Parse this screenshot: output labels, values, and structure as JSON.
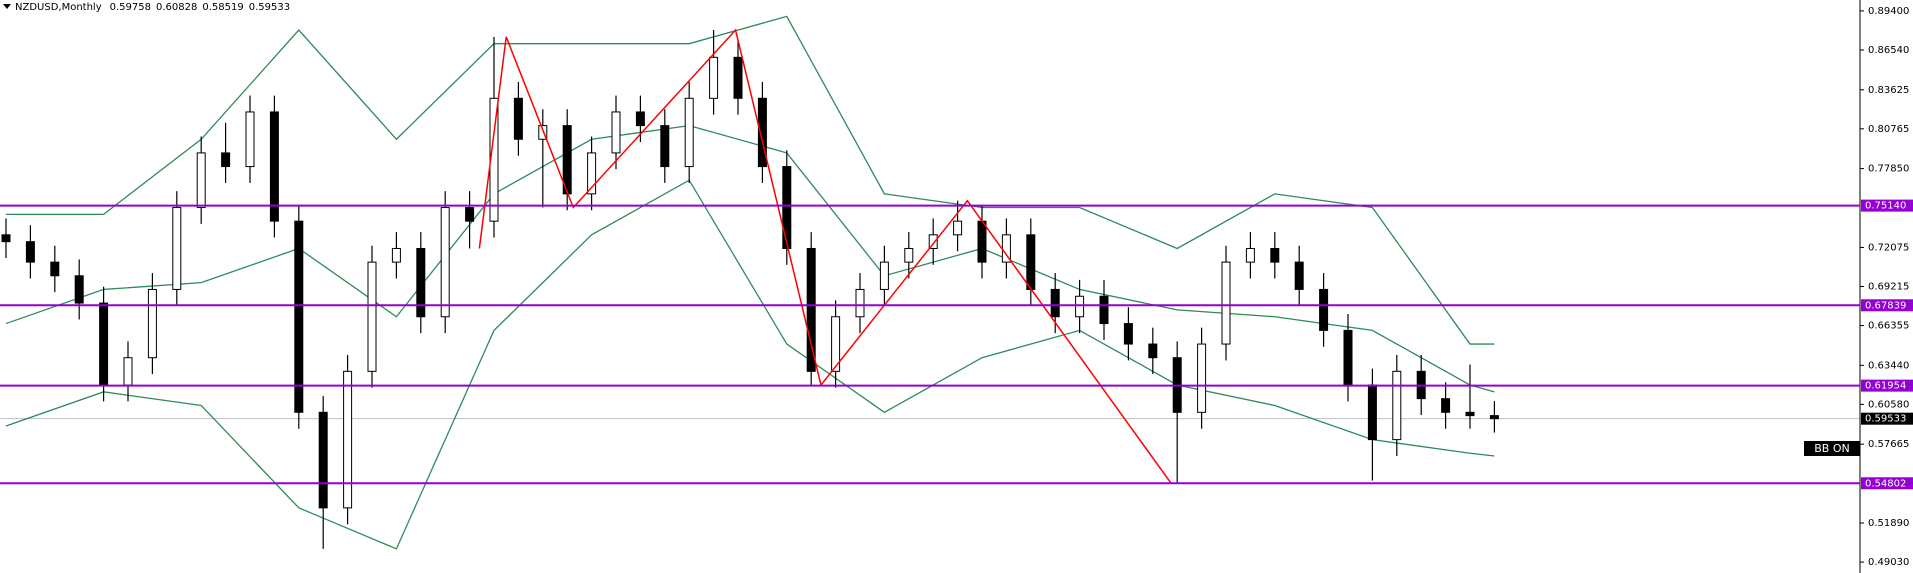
{
  "chart_data": {
    "type": "candlestick",
    "symbol": "NZDUSD,Monthly",
    "ylim": [
      0.4823,
      0.902
    ],
    "yticks": [
      {
        "value": 0.894,
        "label": "0.89400"
      },
      {
        "value": 0.8654,
        "label": "0.86540"
      },
      {
        "value": 0.83625,
        "label": "0.83625"
      },
      {
        "value": 0.80765,
        "label": "0.80765"
      },
      {
        "value": 0.7785,
        "label": "0.77850"
      },
      {
        "value": 0.72075,
        "label": "0.72075"
      },
      {
        "value": 0.69215,
        "label": "0.69215"
      },
      {
        "value": 0.66355,
        "label": "0.66355"
      },
      {
        "value": 0.6344,
        "label": "0.63440"
      },
      {
        "value": 0.6058,
        "label": "0.60580"
      },
      {
        "value": 0.57665,
        "label": "0.57665"
      },
      {
        "value": 0.5189,
        "label": "0.51890"
      },
      {
        "value": 0.4903,
        "label": "0.49030"
      }
    ],
    "candles": [
      [
        0.73,
        0.742,
        0.713,
        0.725
      ],
      [
        0.725,
        0.737,
        0.698,
        0.71
      ],
      [
        0.71,
        0.722,
        0.688,
        0.7
      ],
      [
        0.7,
        0.712,
        0.668,
        0.68
      ],
      [
        0.68,
        0.692,
        0.608,
        0.62
      ],
      [
        0.62,
        0.652,
        0.608,
        0.64
      ],
      [
        0.64,
        0.702,
        0.628,
        0.69
      ],
      [
        0.69,
        0.762,
        0.678,
        0.75
      ],
      [
        0.75,
        0.802,
        0.738,
        0.79
      ],
      [
        0.79,
        0.812,
        0.768,
        0.78
      ],
      [
        0.78,
        0.832,
        0.768,
        0.82
      ],
      [
        0.82,
        0.832,
        0.728,
        0.74
      ],
      [
        0.74,
        0.752,
        0.588,
        0.6
      ],
      [
        0.6,
        0.612,
        0.5,
        0.53
      ],
      [
        0.53,
        0.642,
        0.518,
        0.63
      ],
      [
        0.63,
        0.722,
        0.618,
        0.71
      ],
      [
        0.71,
        0.732,
        0.698,
        0.72
      ],
      [
        0.72,
        0.732,
        0.658,
        0.67
      ],
      [
        0.67,
        0.762,
        0.658,
        0.75
      ],
      [
        0.75,
        0.762,
        0.72,
        0.74
      ],
      [
        0.74,
        0.875,
        0.728,
        0.83
      ],
      [
        0.83,
        0.842,
        0.788,
        0.8
      ],
      [
        0.8,
        0.822,
        0.75,
        0.81
      ],
      [
        0.81,
        0.822,
        0.748,
        0.76
      ],
      [
        0.76,
        0.802,
        0.748,
        0.79
      ],
      [
        0.79,
        0.832,
        0.778,
        0.82
      ],
      [
        0.82,
        0.832,
        0.798,
        0.81
      ],
      [
        0.81,
        0.822,
        0.768,
        0.78
      ],
      [
        0.78,
        0.842,
        0.768,
        0.83
      ],
      [
        0.83,
        0.88,
        0.818,
        0.86
      ],
      [
        0.86,
        0.872,
        0.818,
        0.83
      ],
      [
        0.83,
        0.842,
        0.768,
        0.78
      ],
      [
        0.78,
        0.792,
        0.708,
        0.72
      ],
      [
        0.72,
        0.732,
        0.62,
        0.63
      ],
      [
        0.63,
        0.682,
        0.618,
        0.67
      ],
      [
        0.67,
        0.702,
        0.658,
        0.69
      ],
      [
        0.69,
        0.722,
        0.678,
        0.71
      ],
      [
        0.71,
        0.732,
        0.698,
        0.72
      ],
      [
        0.72,
        0.742,
        0.708,
        0.73
      ],
      [
        0.73,
        0.755,
        0.718,
        0.74
      ],
      [
        0.74,
        0.752,
        0.698,
        0.71
      ],
      [
        0.71,
        0.742,
        0.698,
        0.73
      ],
      [
        0.73,
        0.742,
        0.678,
        0.69
      ],
      [
        0.69,
        0.702,
        0.658,
        0.67
      ],
      [
        0.67,
        0.697,
        0.658,
        0.685
      ],
      [
        0.685,
        0.697,
        0.653,
        0.665
      ],
      [
        0.665,
        0.677,
        0.638,
        0.65
      ],
      [
        0.65,
        0.662,
        0.628,
        0.64
      ],
      [
        0.64,
        0.652,
        0.548,
        0.6
      ],
      [
        0.6,
        0.662,
        0.588,
        0.65
      ],
      [
        0.65,
        0.722,
        0.638,
        0.71
      ],
      [
        0.71,
        0.732,
        0.698,
        0.72
      ],
      [
        0.72,
        0.732,
        0.698,
        0.71
      ],
      [
        0.71,
        0.722,
        0.678,
        0.69
      ],
      [
        0.69,
        0.702,
        0.648,
        0.66
      ],
      [
        0.66,
        0.672,
        0.608,
        0.62
      ],
      [
        0.62,
        0.632,
        0.55,
        0.58
      ],
      [
        0.58,
        0.642,
        0.568,
        0.63
      ],
      [
        0.63,
        0.642,
        0.598,
        0.61
      ],
      [
        0.61,
        0.622,
        0.588,
        0.6
      ],
      [
        0.6,
        0.635,
        0.588,
        0.59758
      ],
      [
        0.59758,
        0.60828,
        0.58519,
        0.59533
      ]
    ],
    "band_x": [
      0,
      4,
      8,
      12,
      16,
      20,
      24,
      28,
      32,
      36,
      40,
      44,
      48,
      52,
      56,
      60,
      61
    ],
    "bands": [
      {
        "color": "#2e8b57",
        "values": [
          0.745,
          0.745,
          0.8,
          0.88,
          0.8,
          0.87,
          0.87,
          0.87,
          0.89,
          0.76,
          0.75,
          0.75,
          0.72,
          0.76,
          0.75,
          0.65,
          0.65
        ]
      },
      {
        "color": "#2e8b57",
        "values": [
          0.665,
          0.69,
          0.695,
          0.72,
          0.67,
          0.76,
          0.8,
          0.81,
          0.79,
          0.7,
          0.72,
          0.69,
          0.675,
          0.67,
          0.66,
          0.62,
          0.615
        ]
      },
      {
        "color": "#2e8b57",
        "values": [
          0.59,
          0.615,
          0.605,
          0.53,
          0.5,
          0.66,
          0.73,
          0.77,
          0.65,
          0.6,
          0.64,
          0.66,
          0.62,
          0.605,
          0.58,
          0.57,
          0.568
        ]
      }
    ],
    "zigzag": {
      "color": "#ff0000",
      "x": [
        19.4,
        20.5,
        23.25,
        29.9,
        33.4,
        39.4,
        47.75
      ],
      "values": [
        0.72,
        0.875,
        0.75,
        0.88,
        0.62,
        0.755,
        0.548
      ]
    },
    "levels": [
      {
        "value": 0.7514,
        "label": "0.75140"
      },
      {
        "value": 0.67839,
        "label": "0.67839"
      },
      {
        "value": 0.61954,
        "label": "0.61954"
      },
      {
        "value": 0.54802,
        "label": "0.54802"
      }
    ],
    "level_color": "#9400d3",
    "current_price": {
      "value": 0.59533,
      "label": "0.59533"
    },
    "indicator_badge": "BB ON"
  }
}
